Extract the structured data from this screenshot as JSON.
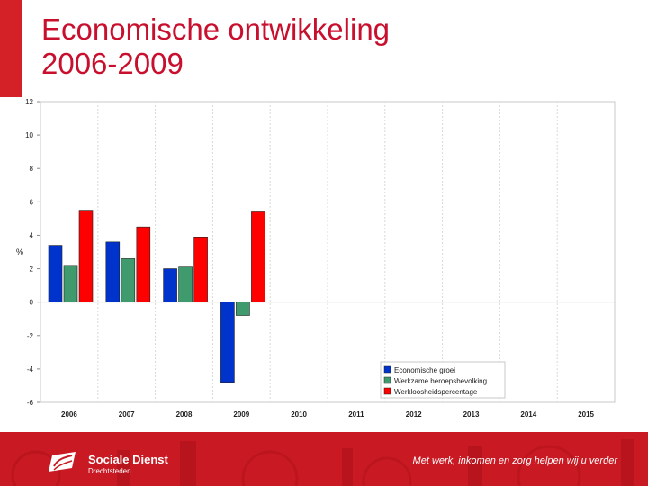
{
  "title": {
    "line1": "Economische ontwikkeling",
    "line2": "2006-2009"
  },
  "colors": {
    "accent": "#c8102e",
    "blue": "#0033cc",
    "green": "#3f9a6e",
    "red": "#ff0000"
  },
  "chart_data": {
    "type": "bar",
    "title": "",
    "xlabel": "",
    "ylabel": "%",
    "ylim": [
      -6,
      12
    ],
    "yticks": [
      12,
      10,
      8,
      6,
      4,
      2,
      0,
      -2,
      -4,
      -6
    ],
    "categories": [
      "2006",
      "2007",
      "2008",
      "2009",
      "2010",
      "2011",
      "2012",
      "2013",
      "2014",
      "2015"
    ],
    "series": [
      {
        "name": "Economische groei",
        "color": "#0033cc",
        "values": [
          3.4,
          3.6,
          2.0,
          -4.8,
          null,
          null,
          null,
          null,
          null,
          null
        ]
      },
      {
        "name": "Werkzame beroepsbevolking",
        "color": "#3f9a6e",
        "values": [
          2.2,
          2.6,
          2.1,
          -0.8,
          null,
          null,
          null,
          null,
          null,
          null
        ]
      },
      {
        "name": "Werkloosheidspercentage",
        "color": "#ff0000",
        "values": [
          5.5,
          4.5,
          3.9,
          5.4,
          null,
          null,
          null,
          null,
          null,
          null
        ]
      }
    ],
    "legend_position": "bottom-right",
    "grid": true
  },
  "footer": {
    "brand_name": "Sociale Dienst",
    "brand_sub": "Drechtsteden",
    "slogan": "Met werk, inkomen en zorg helpen wij u verder"
  }
}
